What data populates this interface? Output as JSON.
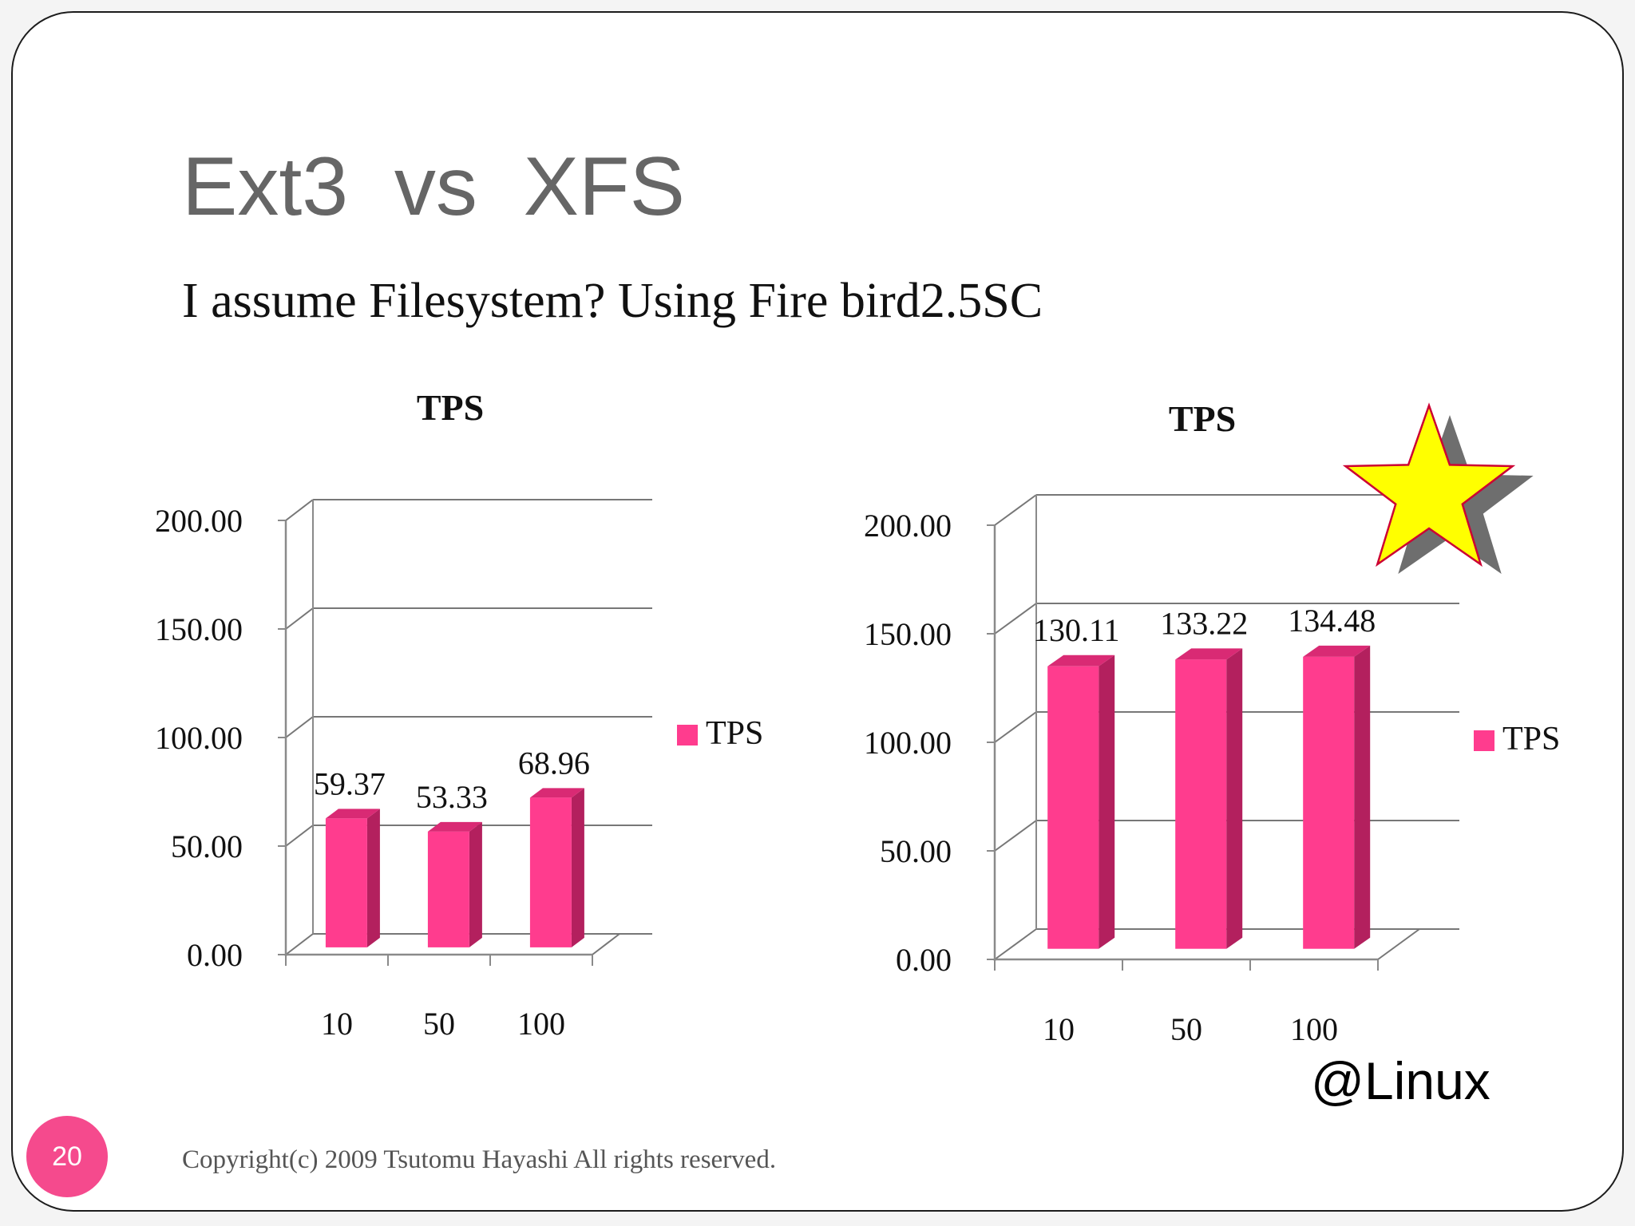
{
  "slide": {
    "title": "Ext3  vs  XFS",
    "subtitle": "I assume Filesystem? Using Fire bird2.5SC",
    "page_number": "20",
    "copyright": "Copyright(c) 2009 Tsutomu Hayashi All rights reserved.",
    "platform_tag": "@Linux"
  },
  "colors": {
    "bar_front": "#ff3c8e",
    "bar_side": "#b3205e",
    "bar_top": "#d92a74",
    "axis": "#8a8a8a",
    "gridline": "#777777",
    "star_fill": "#ffff00",
    "star_outline": "#cc0033",
    "star_shadow": "#6e6e6e"
  },
  "chart_data": [
    {
      "type": "bar",
      "title": "TPS",
      "categories": [
        "10",
        "50",
        "100"
      ],
      "series": [
        {
          "name": "TPS",
          "values": [
            59.37,
            53.33,
            68.96
          ]
        }
      ],
      "data_labels": [
        "59.37",
        "53.33",
        "68.96"
      ],
      "y_ticks": [
        "0.00",
        "50.00",
        "100.00",
        "150.00",
        "200.00"
      ],
      "ylim": [
        0,
        200
      ],
      "grid": true,
      "legend": "right",
      "style": "3d-column"
    },
    {
      "type": "bar",
      "title": "TPS",
      "categories": [
        "10",
        "50",
        "100"
      ],
      "series": [
        {
          "name": "TPS",
          "values": [
            130.11,
            133.22,
            134.48
          ]
        }
      ],
      "data_labels": [
        "130.11",
        "133.22",
        "134.48"
      ],
      "y_ticks": [
        "0.00",
        "50.00",
        "100.00",
        "150.00",
        "200.00"
      ],
      "ylim": [
        0,
        200
      ],
      "grid": true,
      "legend": "right",
      "style": "3d-column",
      "highlight": "star-icon"
    }
  ]
}
